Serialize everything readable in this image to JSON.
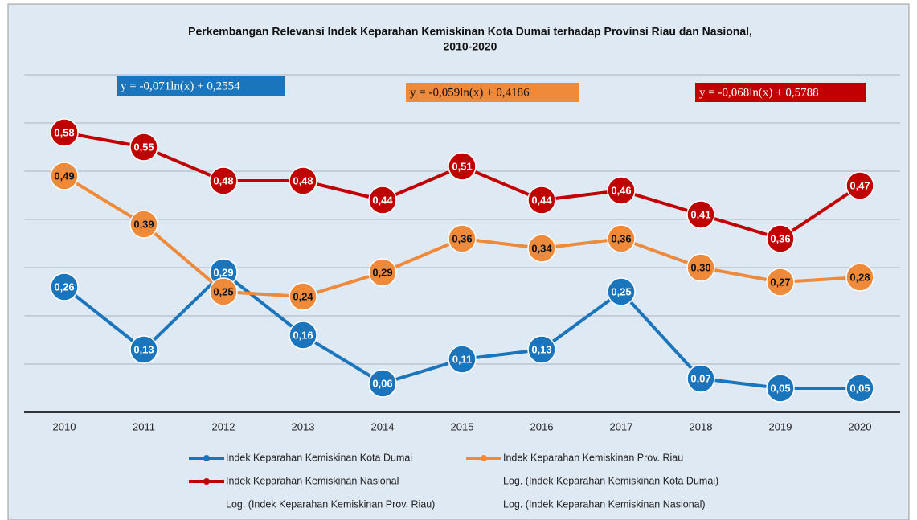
{
  "chart_data": {
    "type": "line",
    "title": [
      "Perkembangan Relevansi Indek Keparahan Kemiskinan Kota Dumai terhadap Provinsi Riau dan Nasional,",
      "2010-2020"
    ],
    "categories": [
      "2010",
      "2011",
      "2012",
      "2013",
      "2014",
      "2015",
      "2016",
      "2017",
      "2018",
      "2019",
      "2020"
    ],
    "ylim": [
      0,
      0.7
    ],
    "yticks": [
      0,
      0.1,
      0.2,
      0.3,
      0.4,
      0.5,
      0.6,
      0.7
    ],
    "grid": true,
    "legend": "bottom",
    "series": [
      {
        "name": "Indek Keparahan Kemiskinan Kota Dumai",
        "color": "#1a75bd",
        "values": [
          0.26,
          0.13,
          0.29,
          0.16,
          0.06,
          0.11,
          0.13,
          0.25,
          0.07,
          0.05,
          0.05
        ],
        "value_labels": [
          "0,26",
          "0,13",
          "0,29",
          "0,16",
          "0,06",
          "0,11",
          "0,13",
          "0,25",
          "0,07",
          "0,05",
          "0,05"
        ],
        "trendline": {
          "name": "Log. (Indek Keparahan Kemiskinan Kota Dumai)",
          "equation": "y = -0,071ln(x) + 0,2554"
        }
      },
      {
        "name": "Indek Keparahan Kemiskinan Prov. Riau",
        "color": "#ef8a3b",
        "values": [
          0.49,
          0.39,
          0.25,
          0.24,
          0.29,
          0.36,
          0.34,
          0.36,
          0.3,
          0.27,
          0.28
        ],
        "value_labels": [
          "0,49",
          "0,39",
          "0,25",
          "0,24",
          "0,29",
          "0,36",
          "0,34",
          "0,36",
          "0,30",
          "0,27",
          "0,28"
        ],
        "trendline": {
          "name": "Log. (Indek Keparahan Kemiskinan Prov. Riau)",
          "equation": "y = -0,059ln(x) + 0,4186"
        }
      },
      {
        "name": "Indek Keparahan Kemiskinan Nasional",
        "color": "#c00000",
        "values": [
          0.58,
          0.55,
          0.48,
          0.48,
          0.44,
          0.51,
          0.44,
          0.46,
          0.41,
          0.36,
          0.47
        ],
        "value_labels": [
          "0,58",
          "0,55",
          "0,48",
          "0,48",
          "0,44",
          "0,51",
          "0,44",
          "0,46",
          "0,41",
          "0,36",
          "0,47"
        ],
        "trendline": {
          "name": "Log. (Indek Keparahan Kemiskinan Nasional)",
          "equation": "y = -0,068ln(x) + 0,5788"
        }
      }
    ]
  }
}
